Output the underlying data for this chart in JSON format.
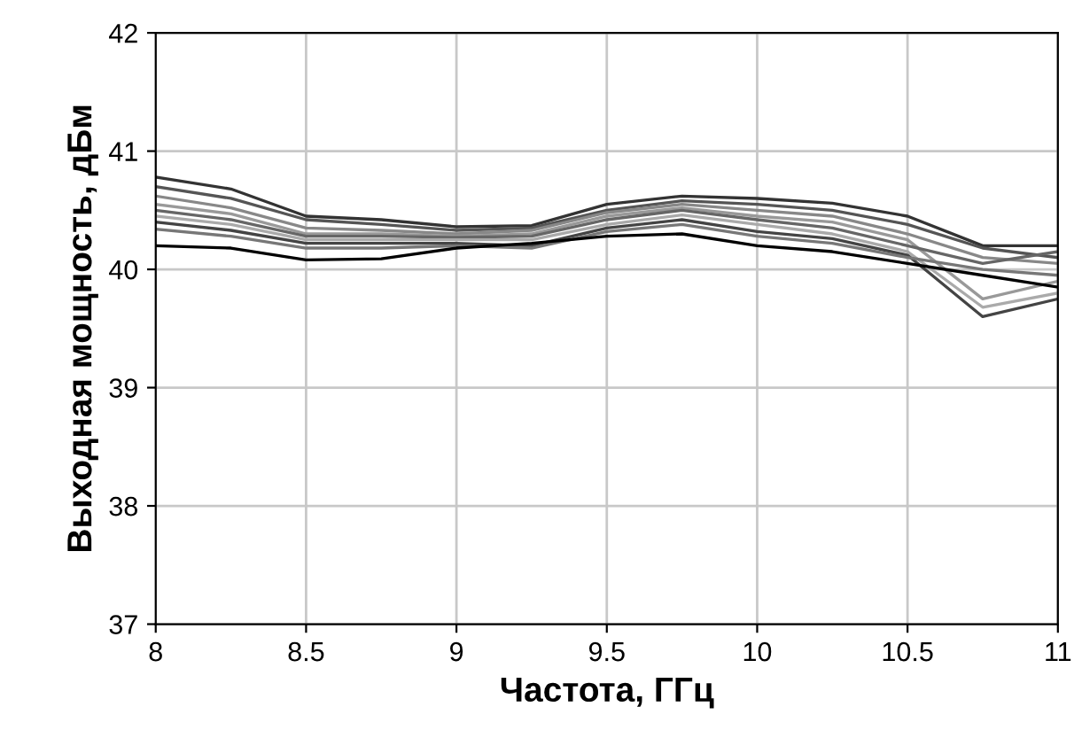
{
  "chart_data": {
    "type": "line",
    "xlabel": "Частота, ГГц",
    "ylabel": "Выходная мощность, дБм",
    "x": [
      8,
      8.25,
      8.5,
      8.75,
      9,
      9.25,
      9.5,
      9.75,
      10,
      10.25,
      10.5,
      10.75,
      11
    ],
    "series": [
      {
        "color": "#333333",
        "values": [
          40.78,
          40.68,
          40.45,
          40.42,
          40.36,
          40.37,
          40.55,
          40.62,
          40.6,
          40.56,
          40.45,
          40.2,
          40.2
        ]
      },
      {
        "color": "#555555",
        "values": [
          40.7,
          40.6,
          40.42,
          40.38,
          40.33,
          40.35,
          40.5,
          40.58,
          40.55,
          40.5,
          40.38,
          40.18,
          40.1
        ]
      },
      {
        "color": "#888888",
        "values": [
          40.62,
          40.52,
          40.35,
          40.33,
          40.3,
          40.33,
          40.48,
          40.55,
          40.5,
          40.45,
          40.3,
          40.1,
          40.05
        ]
      },
      {
        "color": "#999999",
        "values": [
          40.55,
          40.47,
          40.3,
          40.3,
          40.28,
          40.3,
          40.45,
          40.52,
          40.45,
          40.4,
          40.25,
          39.75,
          39.9
        ]
      },
      {
        "color": "#666666",
        "values": [
          40.5,
          40.42,
          40.28,
          40.28,
          40.27,
          40.28,
          40.42,
          40.5,
          40.42,
          40.35,
          40.2,
          40.05,
          40.15
        ]
      },
      {
        "color": "#aaaaaa",
        "values": [
          40.45,
          40.38,
          40.25,
          40.25,
          40.25,
          40.25,
          40.38,
          40.46,
          40.38,
          40.3,
          40.15,
          39.68,
          39.8
        ]
      },
      {
        "color": "#444444",
        "values": [
          40.4,
          40.33,
          40.22,
          40.22,
          40.22,
          40.2,
          40.35,
          40.42,
          40.32,
          40.26,
          40.12,
          39.6,
          39.75
        ]
      },
      {
        "color": "#777777",
        "values": [
          40.34,
          40.28,
          40.18,
          40.18,
          40.2,
          40.18,
          40.32,
          40.38,
          40.28,
          40.22,
          40.1,
          40.0,
          39.95
        ]
      },
      {
        "color": "#000000",
        "values": [
          40.2,
          40.18,
          40.08,
          40.09,
          40.18,
          40.22,
          40.28,
          40.3,
          40.2,
          40.15,
          40.05,
          39.95,
          39.85
        ]
      }
    ],
    "xlim": [
      8,
      11
    ],
    "ylim": [
      37,
      42
    ],
    "xticks": [
      8,
      8.5,
      9,
      9.5,
      10,
      10.5,
      11
    ],
    "yticks": [
      37,
      38,
      39,
      40,
      41,
      42
    ],
    "grid": true,
    "legend": false,
    "marker": "none",
    "line_style": "solid"
  }
}
